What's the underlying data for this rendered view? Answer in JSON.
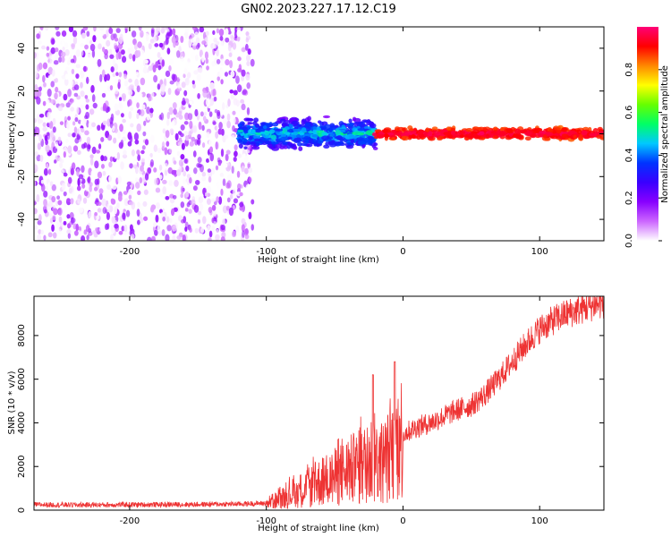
{
  "figure": {
    "title": "GN02.2023.227.17.12.C19"
  },
  "chart_data": [
    {
      "type": "heatmap",
      "title": "GN02.2023.227.17.12.C19",
      "xlabel": "Height of straight line (km)",
      "ylabel": "Frequency (Hz)",
      "xlim": [
        -270,
        147
      ],
      "ylim": [
        -50,
        50
      ],
      "x_ticks": [
        -200,
        -100,
        0,
        100
      ],
      "y_ticks": [
        -40,
        -20,
        0,
        20,
        40
      ],
      "colorbar": {
        "label": "Normalized spectral amplitude",
        "range": [
          0,
          1
        ],
        "ticks": [
          0.0,
          0.2,
          0.4,
          0.6,
          0.8
        ],
        "tick_labels": [
          "0.0",
          "0.2",
          "0.4",
          "0.6",
          "0.8"
        ],
        "colormap": [
          "#ffffff",
          "#cc66ff",
          "#8800ff",
          "#3a00ff",
          "#0033ff",
          "#00c8ff",
          "#00ff66",
          "#66ff00",
          "#ffff00",
          "#ff8800",
          "#ff0000",
          "#ff0077"
        ]
      },
      "regions": [
        {
          "x_range": [
            -270,
            -110
          ],
          "description": "broadband noise",
          "amplitude_range": [
            0.0,
            0.1
          ]
        },
        {
          "x_range": [
            -120,
            -20
          ],
          "freq_center": 0,
          "freq_halfwidth": 8,
          "amplitude_range": [
            0.1,
            0.55
          ]
        },
        {
          "x_range": [
            -20,
            147
          ],
          "freq_center": 0,
          "freq_halfwidth": 3,
          "amplitude_range": [
            0.8,
            1.0
          ]
        }
      ],
      "grid": false
    },
    {
      "type": "line",
      "xlabel": "Height of straight line (km)",
      "ylabel": "SNR (10 * v/v)",
      "xlim": [
        -270,
        147
      ],
      "ylim": [
        0,
        9800
      ],
      "x_ticks": [
        -200,
        -100,
        0,
        100
      ],
      "y_ticks": [
        0,
        2000,
        4000,
        6000,
        8000
      ],
      "series": [
        {
          "color": "#ee3333",
          "x": [
            -270,
            -240,
            -200,
            -160,
            -120,
            -100,
            -90,
            -80,
            -70,
            -60,
            -50,
            -40,
            -30,
            -22,
            -15,
            -10,
            -5,
            0,
            10,
            20,
            30,
            40,
            50,
            60,
            70,
            80,
            90,
            100,
            110,
            120,
            130,
            140,
            147
          ],
          "y": [
            250,
            240,
            250,
            260,
            280,
            320,
            500,
            800,
            1000,
            1300,
            1500,
            1800,
            2000,
            2400,
            2200,
            2500,
            3000,
            3500,
            3800,
            4000,
            4300,
            4600,
            4800,
            5300,
            6000,
            6800,
            7600,
            8300,
            8700,
            9000,
            9200,
            9400,
            9500
          ],
          "spikes": [
            {
              "x": -22,
              "y": 6200
            },
            {
              "x": -6,
              "y": 6800
            }
          ]
        }
      ],
      "grid": false
    }
  ]
}
